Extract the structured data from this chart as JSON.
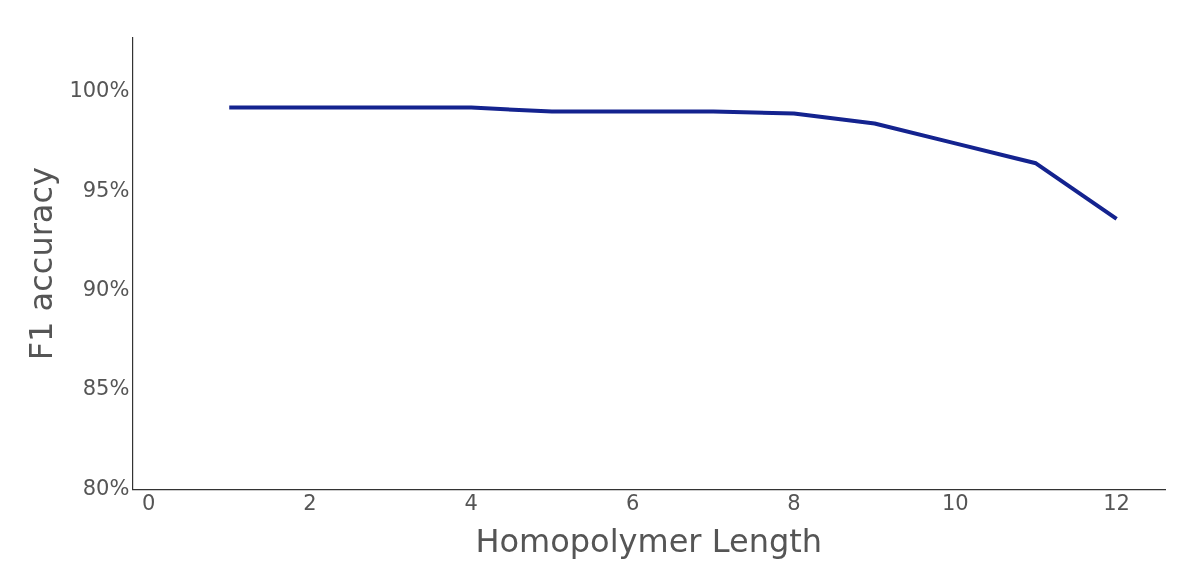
{
  "chart_data": {
    "type": "line",
    "xlabel": "Homopolymer Length",
    "ylabel": "F1 accuracy",
    "x": [
      1,
      2,
      3,
      4,
      5,
      6,
      7,
      8,
      9,
      10,
      11,
      12
    ],
    "series": [
      {
        "color": "#14238f",
        "values": [
          99.2,
          99.2,
          99.2,
          99.2,
          99.0,
          99.0,
          99.0,
          98.9,
          98.4,
          97.4,
          96.4,
          93.6
        ]
      }
    ],
    "xlim": [
      -0.2,
      12.6
    ],
    "xticks": [
      0,
      2,
      4,
      6,
      8,
      10,
      12
    ],
    "ylim": [
      80,
      102.7
    ],
    "yticks": [
      {
        "value": 80,
        "label": "80%"
      },
      {
        "value": 85,
        "label": "85%"
      },
      {
        "value": 90,
        "label": "90%"
      },
      {
        "value": 95,
        "label": "95%"
      },
      {
        "value": 100,
        "label": "100%"
      }
    ],
    "grid": false,
    "legend": false,
    "marker": "none",
    "line_style": "solid"
  }
}
